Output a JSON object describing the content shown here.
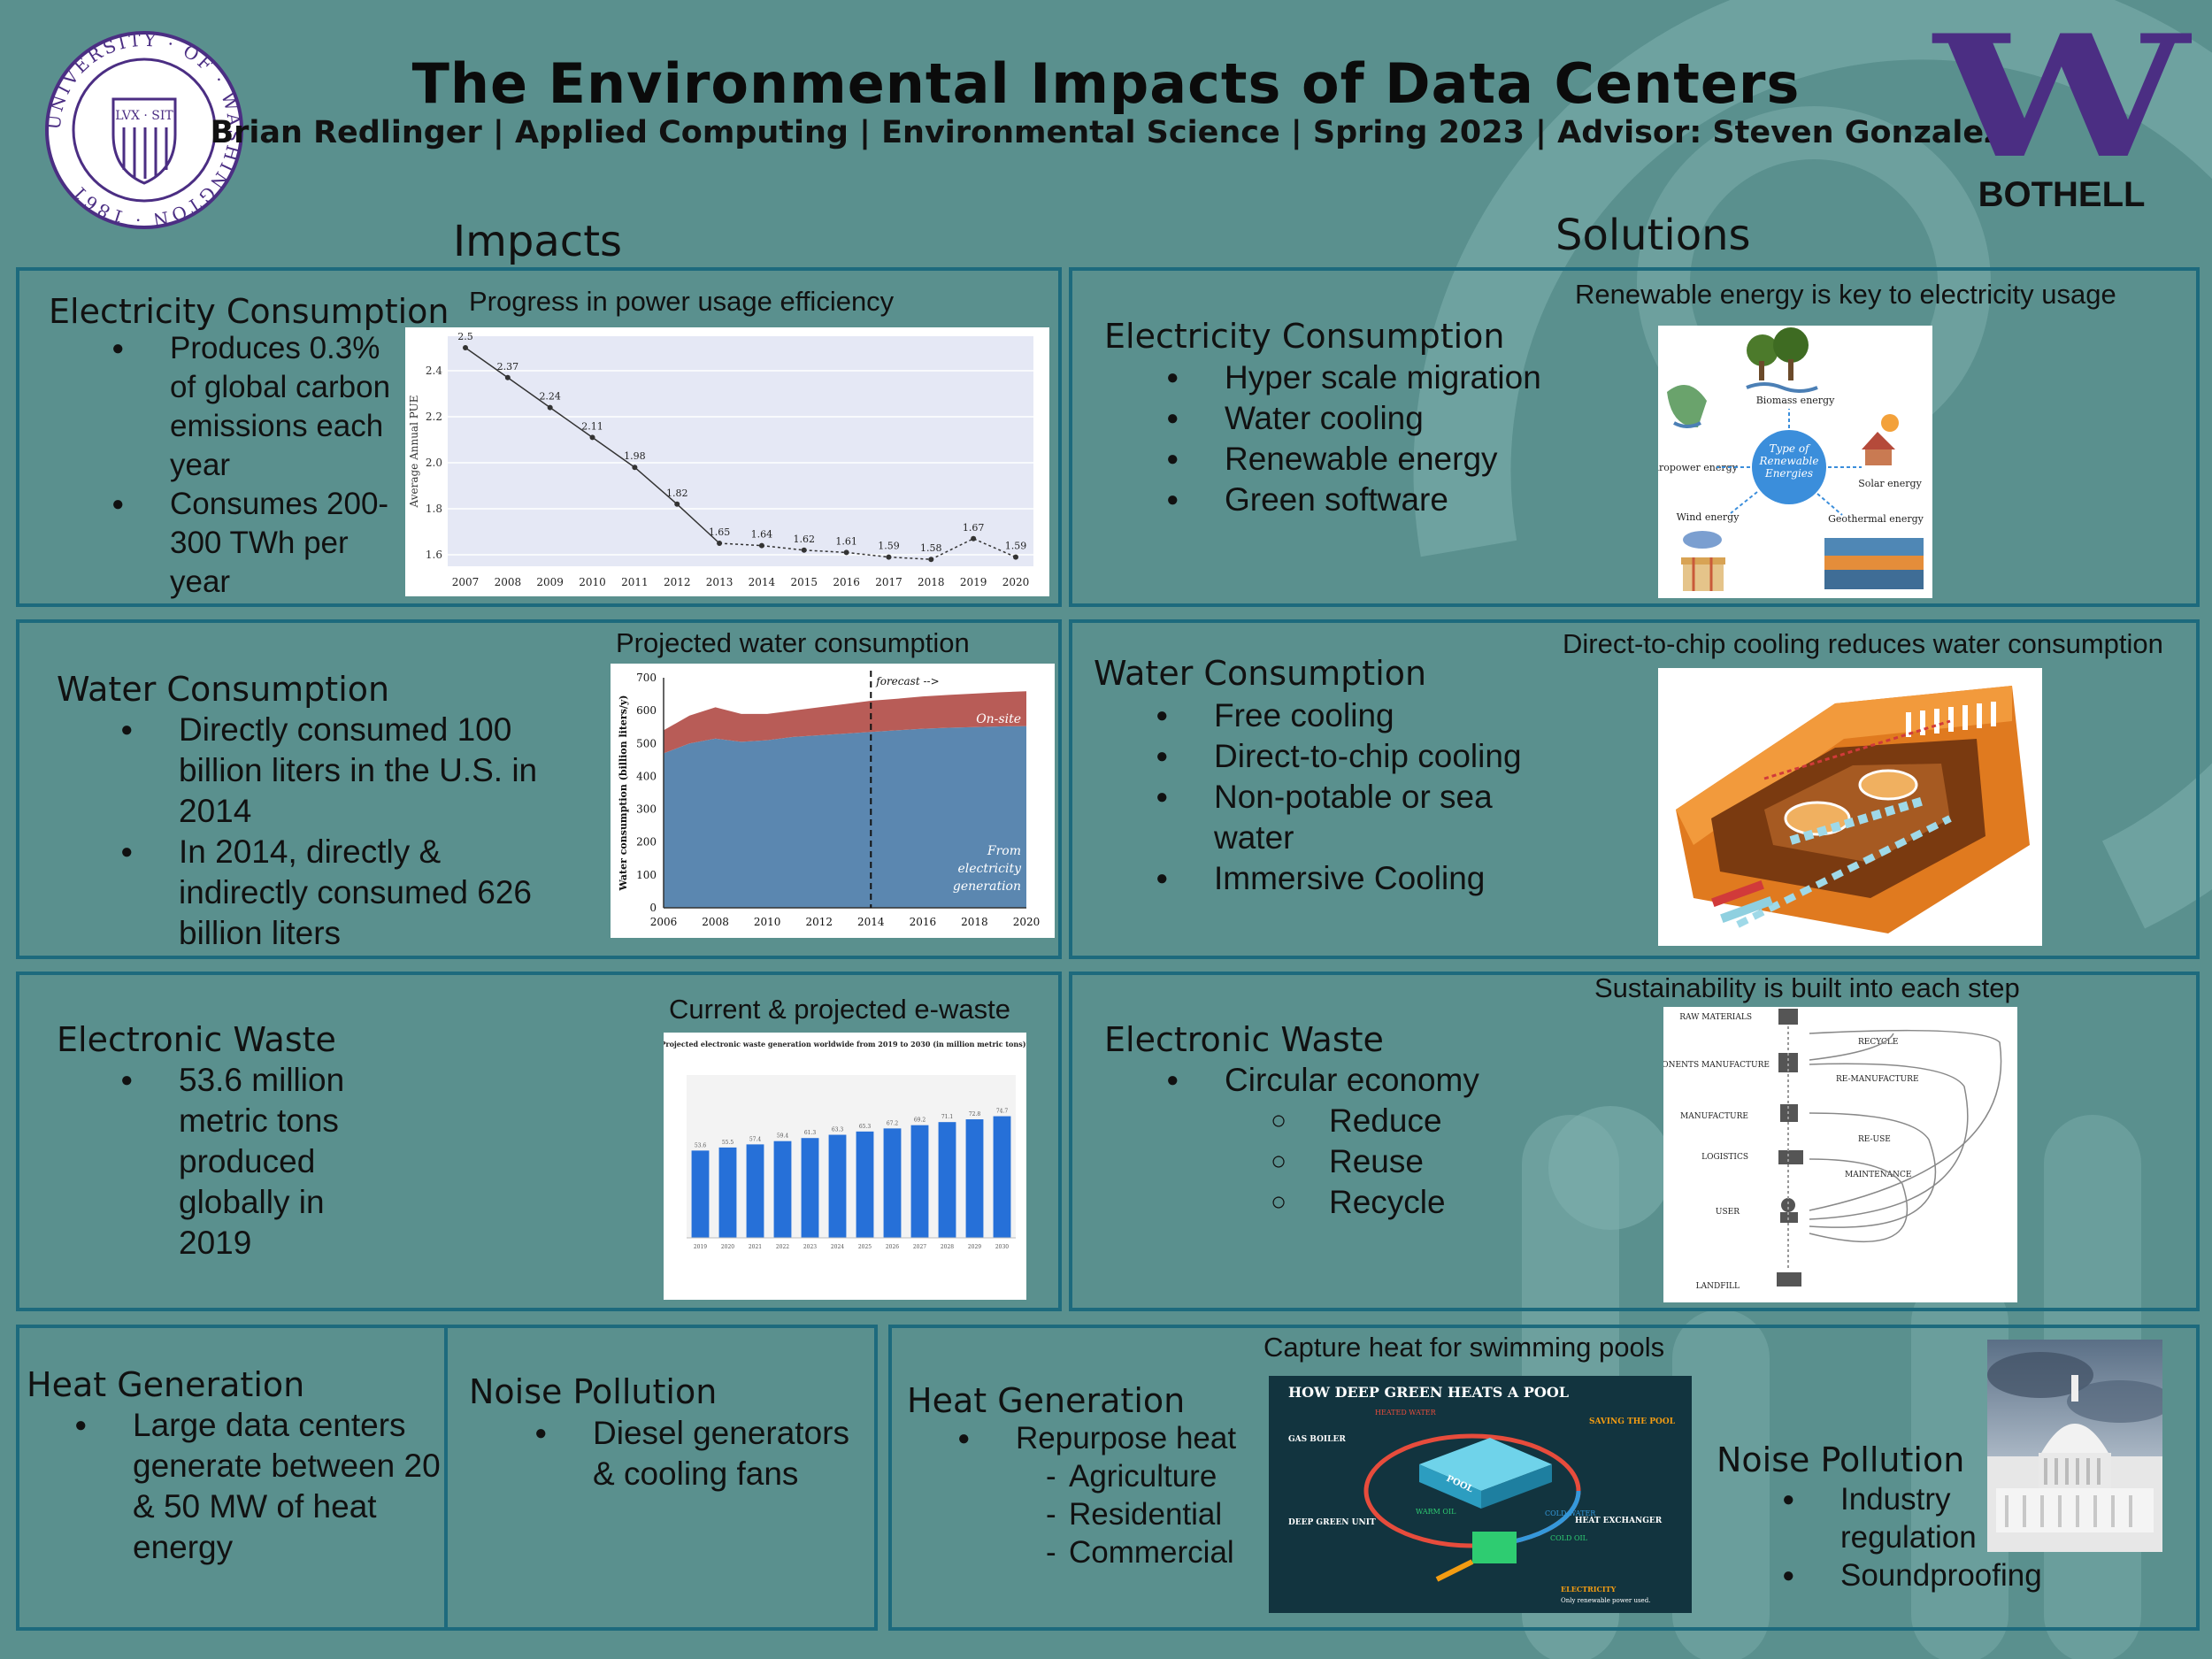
{
  "header": {
    "title": "The Environmental Impacts of Data Centers",
    "subtitle": "Brian Redlinger | Applied Computing | Environmental Science | Spring 2023 | Advisor: Steven Gonzalez",
    "seal_text": "UNIVERSITY · OF · WASHINGTON · 1861",
    "seal_motto": "LVX · SIT",
    "logo_letter": "W",
    "logo_text": "BOTHELL"
  },
  "impacts": {
    "heading": "Impacts",
    "electricity": {
      "title": "Electricity Consumption",
      "bullets": [
        "Produces 0.3% of global carbon emissions each year",
        "Consumes 200-300 TWh per year"
      ],
      "caption": "Progress in power usage efficiency"
    },
    "water": {
      "title": "Water Consumption",
      "bullets": [
        "Directly consumed 100 billion liters in the U.S. in 2014",
        "In 2014, directly & indirectly consumed 626 billion liters"
      ],
      "caption": "Projected water consumption"
    },
    "ewaste": {
      "title": "Electronic Waste",
      "bullets": [
        "53.6 million metric tons produced globally in 2019"
      ],
      "caption": "Current & projected e-waste"
    },
    "heat": {
      "title": "Heat Generation",
      "bullets": [
        "Large data centers generate between 20 & 50 MW of heat energy"
      ]
    },
    "noise": {
      "title": "Noise Pollution",
      "bullets": [
        "Diesel generators & cooling fans"
      ]
    }
  },
  "solutions": {
    "heading": "Solutions",
    "electricity": {
      "title": "Electricity Consumption",
      "bullets": [
        "Hyper scale migration",
        "Water cooling",
        "Renewable energy",
        "Green software"
      ],
      "caption": "Renewable energy is key to electricity usage",
      "diagram": {
        "center": "Type of Renewable Energies",
        "items": [
          "Biomass energy",
          "Hydropower energy",
          "Solar energy",
          "Wind energy",
          "Geothermal energy"
        ]
      }
    },
    "water": {
      "title": "Water Consumption",
      "bullets": [
        "Free cooling",
        "Direct-to-chip cooling",
        "Non-potable or sea water",
        "Immersive Cooling"
      ],
      "caption": "Direct-to-chip cooling reduces water consumption"
    },
    "ewaste": {
      "title": "Electronic Waste",
      "bullets": [
        "Circular economy"
      ],
      "sub_bullets": [
        "Reduce",
        "Reuse",
        "Recycle"
      ],
      "caption": "Sustainability is built into each step",
      "diagram": {
        "steps": [
          "RAW MATERIALS",
          "COMPONENTS MANUFACTURE",
          "MANUFACTURE",
          "LOGISTICS",
          "USER",
          "LANDFILL"
        ],
        "loops": [
          "RECYCLE",
          "RE-MANUFACTURE",
          "RE-USE",
          "MAINTENANCE"
        ]
      }
    },
    "heat": {
      "title": "Heat Generation",
      "bullets": [
        "Repurpose heat"
      ],
      "sub_bullets": [
        "Agriculture",
        "Residential",
        "Commercial"
      ],
      "caption": "Capture heat for swimming pools",
      "infographic": {
        "title": "HOW DEEP GREEN HEATS A POOL",
        "gas_boiler": "GAS BOILER",
        "heated_water": "HEATED WATER",
        "pool": "POOL",
        "cold_water": "COLD WATER",
        "saving": "SAVING THE POOL",
        "heat_exchanger": "HEAT EXCHANGER",
        "deep_green": "DEEP GREEN UNIT",
        "warm_oil": "WARM OIL",
        "cold_oil": "COLD OIL",
        "electricity": "ELECTRICITY",
        "electricity_note": "Only renewable power used."
      }
    },
    "noise": {
      "title": "Noise Pollution",
      "bullets": [
        "Industry regulation",
        "Soundproofing"
      ]
    }
  },
  "charts": {
    "colors": {
      "pue_line": "#333333",
      "pue_bg": "#e5e8f5",
      "water_top": "#b85c57",
      "water_bottom": "#5b87b0",
      "ewaste_bar": "#2670d8"
    }
  },
  "chart_data": [
    {
      "type": "line",
      "title": "",
      "xlabel": "",
      "ylabel": "Average Annual PUE",
      "x": [
        "2007",
        "2008",
        "2009",
        "2010",
        "2011",
        "2012",
        "2013",
        "2014",
        "2015",
        "2016",
        "2017",
        "2018",
        "2019",
        "2020"
      ],
      "values": [
        2.5,
        2.37,
        2.24,
        2.11,
        1.98,
        1.82,
        1.65,
        1.64,
        1.62,
        1.61,
        1.59,
        1.58,
        1.67,
        1.59
      ],
      "labels": [
        "2.5",
        "2.37",
        "2.24",
        "2.11",
        "1.98",
        "1.82",
        "1.65",
        "1.64",
        "1.62",
        "1.61",
        "1.59",
        "1.58",
        "1.67",
        "1.59"
      ],
      "yticks": [
        "1.6",
        "1.8",
        "2.0",
        "2.2",
        "2.4"
      ],
      "ylim": [
        1.55,
        2.55
      ]
    },
    {
      "type": "area",
      "title": "",
      "xlabel": "",
      "ylabel": "Water consumption (billion liters/y)",
      "x": [
        2006,
        2007,
        2008,
        2009,
        2010,
        2011,
        2012,
        2013,
        2014,
        2015,
        2016,
        2017,
        2018,
        2019,
        2020
      ],
      "xticks": [
        "2006",
        "2008",
        "2010",
        "2012",
        "2014",
        "2016",
        "2018",
        "2020"
      ],
      "yticks": [
        "0",
        "100",
        "200",
        "300",
        "400",
        "500",
        "600",
        "700"
      ],
      "ylim": [
        0,
        700
      ],
      "series": [
        {
          "name": "From electricity generation",
          "values": [
            470,
            500,
            515,
            505,
            510,
            520,
            525,
            530,
            535,
            540,
            545,
            548,
            550,
            552,
            553
          ]
        },
        {
          "name": "On-site",
          "values": [
            70,
            85,
            95,
            85,
            80,
            80,
            85,
            90,
            95,
            96,
            98,
            100,
            102,
            104,
            106
          ]
        }
      ],
      "annotation": "forecast -->",
      "forecast_x": 2014
    },
    {
      "type": "bar",
      "title": "Projected electronic waste generation worldwide from 2019 to 2030 (in million metric tons)*",
      "categories": [
        "2019",
        "2020",
        "2021",
        "2022",
        "2023",
        "2024",
        "2025",
        "2026",
        "2027",
        "2028",
        "2029",
        "2030"
      ],
      "values": [
        53.6,
        55.5,
        57.4,
        59.4,
        61.3,
        63.3,
        65.3,
        67.2,
        69.2,
        71.1,
        72.8,
        74.7
      ],
      "ylim": [
        0,
        100
      ]
    }
  ]
}
